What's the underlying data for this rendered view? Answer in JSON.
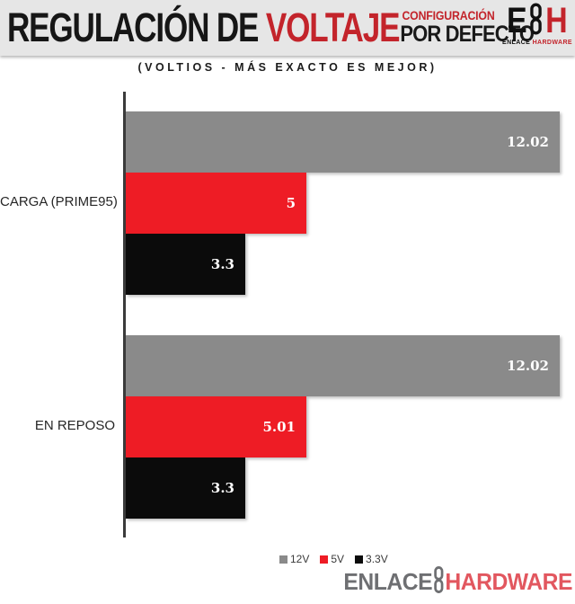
{
  "header": {
    "title_black": "REGULACIÓN DE",
    "title_red": "VOLTAJE",
    "config_line1": "CONFIGURACIÓN",
    "config_line2": "POR DEFECTO",
    "logo_e": "E",
    "logo_h": "H",
    "logo_sub_black": "ENLACE",
    "logo_sub_red": "HARDWARE"
  },
  "subtitle": "(VOLTIOS - MÁS EXACTO ES MEJOR)",
  "chart_data": {
    "type": "bar",
    "orientation": "horizontal",
    "title": "REGULACIÓN DE VOLTAJE — CONFIGURACIÓN POR DEFECTO",
    "subtitle": "(VOLTIOS - MÁS EXACTO ES MEJOR)",
    "categories": [
      "CARGA (PRIME95)",
      "EN REPOSO"
    ],
    "series": [
      {
        "name": "12V",
        "color": "#8A8A8A",
        "values": [
          12.02,
          12.02
        ],
        "labels": [
          "12.02",
          "12.02"
        ]
      },
      {
        "name": "5V",
        "color": "#EE1C25",
        "values": [
          5,
          5.01
        ],
        "labels": [
          "5",
          "5.01"
        ]
      },
      {
        "name": "3.3V",
        "color": "#0B0B0B",
        "values": [
          3.3,
          3.3
        ],
        "labels": [
          "3.3",
          "3.3"
        ]
      }
    ],
    "bar_order_top_to_bottom": [
      "12V",
      "5V",
      "3.3V"
    ],
    "value_labels": "inside-end",
    "xlim": [
      0,
      12.4
    ],
    "grid": false,
    "legend_position": "bottom"
  },
  "footer": {
    "brand_gray": "ENLACE",
    "brand_red": "HARDWARE"
  },
  "colors": {
    "header_bg": "#E6E6E6",
    "header_red": "#C3242B",
    "bar_gray": "#8A8A8A",
    "bar_red": "#EE1C25",
    "bar_black": "#0B0B0B",
    "axis": "#3B3B3B",
    "legend_text": "#3A3A3A",
    "footer_gray": "#6E6F72",
    "footer_red": "#E2575F"
  }
}
